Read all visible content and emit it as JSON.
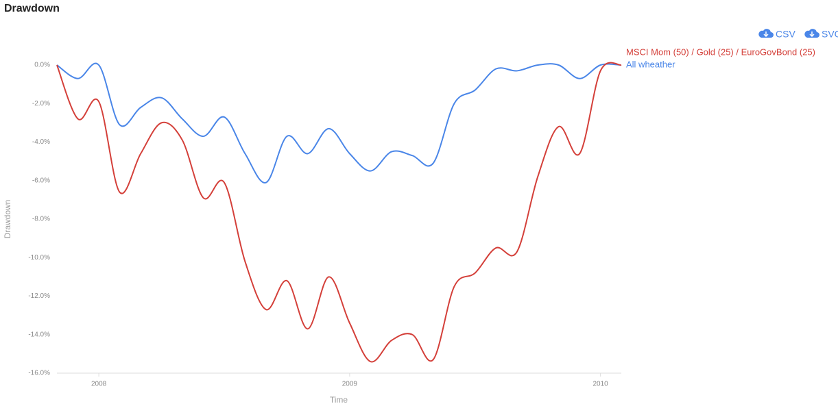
{
  "chart_data": {
    "type": "line",
    "title": "Drawdown",
    "x_label": "Time",
    "y_label": "Drawdown",
    "x": [
      2007.833,
      2007.917,
      2008,
      2008.083,
      2008.167,
      2008.25,
      2008.333,
      2008.417,
      2008.5,
      2008.583,
      2008.667,
      2008.75,
      2008.833,
      2008.917,
      2009,
      2009.083,
      2009.167,
      2009.25,
      2009.333,
      2009.417,
      2009.5,
      2009.583,
      2009.667,
      2009.75,
      2009.833,
      2009.917,
      2010,
      2010.083
    ],
    "xlim": [
      2007.833,
      2010.083
    ],
    "xticks": [
      2008,
      2009,
      2010
    ],
    "ylim": [
      -16,
      0
    ],
    "yticks": [
      {
        "value": 0,
        "label": "0.0%"
      },
      {
        "value": -2,
        "label": "-2.0%"
      },
      {
        "value": -4,
        "label": "-4.0%"
      },
      {
        "value": -6,
        "label": "-6.0%"
      },
      {
        "value": -8,
        "label": "-8.0%"
      },
      {
        "value": -10,
        "label": "-10.0%"
      },
      {
        "value": -12,
        "label": "-12.0%"
      },
      {
        "value": -14,
        "label": "-14.0%"
      },
      {
        "value": -16,
        "label": "-16.0%"
      }
    ],
    "legend": "right",
    "series": [
      {
        "name": "MSCI Mom (50) / Gold (25) / EuroGovBond (25)",
        "color": "#d4403a",
        "values": [
          0,
          -2.8,
          -1.9,
          -6.6,
          -4.6,
          -3.0,
          -3.9,
          -6.9,
          -6.1,
          -10.2,
          -12.7,
          -11.2,
          -13.7,
          -11.0,
          -13.4,
          -15.4,
          -14.3,
          -14.0,
          -15.3,
          -11.5,
          -10.8,
          -9.5,
          -9.7,
          -5.8,
          -3.2,
          -4.6,
          -0.3,
          0
        ]
      },
      {
        "name": "All wheather",
        "color": "#4a86e8",
        "values": [
          0,
          -0.7,
          0,
          -3.1,
          -2.2,
          -1.7,
          -2.8,
          -3.7,
          -2.7,
          -4.6,
          -6.1,
          -3.7,
          -4.6,
          -3.3,
          -4.6,
          -5.5,
          -4.5,
          -4.7,
          -5.1,
          -2.0,
          -1.3,
          -0.2,
          -0.3,
          0,
          0,
          -0.7,
          0,
          0
        ]
      }
    ]
  },
  "buttons": [
    "CSV",
    "SVG"
  ]
}
